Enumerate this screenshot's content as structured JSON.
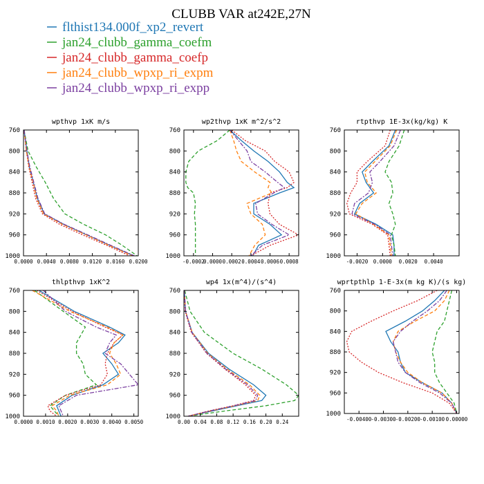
{
  "title": "CLUBB VAR at242E,27N",
  "legend": [
    {
      "label": "flthist134.000f_xp2_revert",
      "color": "#1f77b4",
      "dash": "solid"
    },
    {
      "label": "jan24_clubb_gamma_coefm",
      "color": "#2ca02c",
      "dash": "dash"
    },
    {
      "label": "jan24_clubb_gamma_coefp",
      "color": "#d62728",
      "dash": "dot"
    },
    {
      "label": "jan24_clubb_wpxp_ri_expm",
      "color": "#ff7f0e",
      "dash": "dash"
    },
    {
      "label": "jan24_clubb_wpxp_ri_expp",
      "color": "#7b3fa0",
      "dash": "dashdot"
    }
  ],
  "chart_data": [
    {
      "type": "line",
      "title": "wpthvp  1xK m/s",
      "xlim": [
        0,
        0.02
      ],
      "ylim": [
        760,
        1000
      ],
      "xticks": [
        "0.0000",
        "0.0040",
        "0.0080",
        "0.0120",
        "0.0160",
        "0.0200"
      ],
      "xtick_values": [
        0,
        0.004,
        0.008,
        0.012,
        0.016,
        0.02
      ],
      "yticks": [
        "760",
        "800",
        "840",
        "880",
        "920",
        "960",
        "1000"
      ],
      "ytick_values": [
        760,
        800,
        840,
        880,
        920,
        960,
        1000
      ],
      "y": [
        760,
        800,
        830,
        860,
        890,
        920,
        940,
        960,
        980,
        1000
      ],
      "series": [
        {
          "x": [
            0.0001,
            0.0006,
            0.001,
            0.0017,
            0.0024,
            0.0036,
            0.007,
            0.011,
            0.015,
            0.0192
          ]
        },
        {
          "x": [
            0.0001,
            0.0008,
            0.0022,
            0.0038,
            0.0052,
            0.0072,
            0.0105,
            0.0143,
            0.0172,
            0.0198
          ]
        },
        {
          "x": [
            0.0001,
            0.0005,
            0.0009,
            0.0015,
            0.0021,
            0.0033,
            0.0063,
            0.0103,
            0.0145,
            0.0185
          ]
        },
        {
          "x": [
            0.0001,
            0.0005,
            0.001,
            0.0017,
            0.0023,
            0.0035,
            0.0068,
            0.0109,
            0.0149,
            0.019
          ]
        },
        {
          "x": [
            0.0001,
            0.0006,
            0.0011,
            0.0018,
            0.0025,
            0.0037,
            0.0071,
            0.0112,
            0.0152,
            0.0193
          ]
        }
      ]
    },
    {
      "type": "line",
      "title": "wp2thvp  1xK m^2/s^2",
      "xlim": [
        -0.0003,
        0.0009
      ],
      "ylim": [
        760,
        1000
      ],
      "xticks": [
        "-0.0002",
        "0.0000",
        "0.0002",
        "0.0004",
        "0.0006",
        "0.0008"
      ],
      "xtick_values": [
        -0.0002,
        0,
        0.0002,
        0.0004,
        0.0006,
        0.0008
      ],
      "yticks": [
        "760",
        "800",
        "840",
        "880",
        "920",
        "960",
        "1000"
      ],
      "ytick_values": [
        760,
        800,
        840,
        880,
        920,
        960,
        1000
      ],
      "y": [
        760,
        780,
        800,
        820,
        840,
        860,
        870,
        880,
        900,
        920,
        940,
        960,
        980,
        1000
      ],
      "series": [
        {
          "x": [
            0.00018,
            0.0003,
            0.00043,
            0.00058,
            0.0007,
            0.00078,
            0.00085,
            0.0007,
            0.00043,
            0.00043,
            0.0006,
            0.00072,
            0.00048,
            0.00042
          ]
        },
        {
          "x": [
            0.00018,
            5e-05,
            -0.00015,
            -0.00025,
            -0.00028,
            -0.00028,
            -0.00026,
            -0.0002,
            -0.00018,
            -0.00019,
            -0.00018,
            -0.00018,
            -0.00018,
            -0.00018
          ]
        },
        {
          "x": [
            0.0002,
            0.00034,
            0.00055,
            0.00065,
            0.0008,
            0.00085,
            0.00078,
            0.0006,
            0.00058,
            0.0006,
            0.0007,
            0.0009,
            0.0006,
            0.0004
          ]
        },
        {
          "x": [
            0.00018,
            0.00022,
            0.00025,
            0.0003,
            0.00044,
            0.0006,
            0.00058,
            0.00062,
            0.00036,
            0.0004,
            0.00052,
            0.00055,
            0.00044,
            0.00038
          ]
        },
        {
          "x": [
            0.00018,
            0.00027,
            0.00036,
            0.0004,
            0.00055,
            0.00068,
            0.00075,
            0.00064,
            0.00045,
            0.00047,
            0.00062,
            0.0008,
            0.00052,
            0.0004
          ]
        }
      ]
    },
    {
      "type": "line",
      "title": "rtpthvp  1E-3x(kg/kg) K",
      "xlim": [
        -0.003,
        0.006
      ],
      "ylim": [
        760,
        1000
      ],
      "xticks": [
        "-0.0020",
        "0.0000",
        "0.0020",
        "0.0040"
      ],
      "xtick_values": [
        -0.002,
        0,
        0.002,
        0.004
      ],
      "yticks": [
        "760",
        "800",
        "840",
        "880",
        "920",
        "960",
        "1000"
      ],
      "ytick_values": [
        760,
        800,
        840,
        880,
        920,
        960,
        1000
      ],
      "y": [
        760,
        790,
        820,
        840,
        860,
        880,
        900,
        920,
        940,
        960,
        980,
        1000
      ],
      "series": [
        {
          "x": [
            0.001,
            0.0005,
            -0.0008,
            -0.0016,
            -0.0013,
            -0.0007,
            -0.0018,
            -0.0022,
            -0.0005,
            0.0008,
            0.0009,
            0.0009
          ]
        },
        {
          "x": [
            0.0017,
            0.0013,
            0.0005,
            0.0002,
            0.0007,
            0.0008,
            0.0005,
            0.0008,
            0.001,
            0.0007,
            0.0009,
            0.001
          ]
        },
        {
          "x": [
            0.0006,
            0.0002,
            -0.0012,
            -0.002,
            -0.002,
            -0.0025,
            -0.0028,
            -0.0026,
            -0.0008,
            0.0004,
            0.0005,
            0.0006
          ]
        },
        {
          "x": [
            0.0011,
            0.0006,
            -0.0006,
            -0.0014,
            -0.0012,
            -0.0005,
            -0.0016,
            -0.0021,
            -0.0007,
            0.0005,
            0.0006,
            0.0007
          ]
        },
        {
          "x": [
            0.0014,
            0.0009,
            -0.0002,
            -0.001,
            -0.0008,
            -0.0011,
            -0.0022,
            -0.0024,
            -0.0006,
            0.0006,
            0.0007,
            0.0008
          ]
        }
      ]
    },
    {
      "type": "line",
      "title": "thlpthvp  1xK^2",
      "xlim": [
        0,
        0.0052
      ],
      "ylim": [
        760,
        1000
      ],
      "xticks": [
        "0.0000",
        "0.0010",
        "0.0020",
        "0.0030",
        "0.0040",
        "0.0050"
      ],
      "xtick_values": [
        0,
        0.001,
        0.002,
        0.003,
        0.004,
        0.005
      ],
      "yticks": [
        "760",
        "800",
        "840",
        "880",
        "920",
        "960",
        "1000"
      ],
      "ytick_values": [
        760,
        800,
        840,
        880,
        920,
        960,
        1000
      ],
      "y": [
        760,
        800,
        830,
        845,
        860,
        880,
        900,
        920,
        940,
        960,
        980,
        990,
        1000
      ],
      "series": [
        {
          "x": [
            0.0007,
            0.0023,
            0.0039,
            0.0046,
            0.0043,
            0.0036,
            0.004,
            0.0043,
            0.0036,
            0.0022,
            0.0015,
            0.0016,
            0.0017
          ]
        },
        {
          "x": [
            0.0005,
            0.0018,
            0.0028,
            0.0026,
            0.0024,
            0.0024,
            0.0027,
            0.0028,
            0.0033,
            0.0019,
            0.0012,
            0.0014,
            0.0016
          ]
        },
        {
          "x": [
            0.0006,
            0.0022,
            0.0037,
            0.0045,
            0.0041,
            0.0038,
            0.0037,
            0.0038,
            0.0035,
            0.0019,
            0.0011,
            0.0012,
            0.0015
          ]
        },
        {
          "x": [
            0.0004,
            0.0021,
            0.0038,
            0.0045,
            0.0041,
            0.0039,
            0.0042,
            0.0044,
            0.0038,
            0.0021,
            0.0013,
            0.0015,
            0.0016
          ]
        },
        {
          "x": [
            0.0009,
            0.0019,
            0.0033,
            0.0042,
            0.0039,
            0.0037,
            0.0044,
            0.0048,
            0.0052,
            0.0024,
            0.0016,
            0.0017,
            0.0018
          ]
        }
      ]
    },
    {
      "type": "line",
      "title": "wp4  1x(m^4)/(s^4)",
      "xlim": [
        0,
        0.28
      ],
      "ylim": [
        760,
        1000
      ],
      "xticks": [
        "0.00",
        "0.04",
        "0.08",
        "0.12",
        "0.16",
        "0.20",
        "0.24"
      ],
      "xtick_values": [
        0,
        0.04,
        0.08,
        0.12,
        0.16,
        0.2,
        0.24
      ],
      "yticks": [
        "760",
        "800",
        "840",
        "880",
        "920",
        "960",
        "1000"
      ],
      "ytick_values": [
        760,
        800,
        840,
        880,
        920,
        960,
        1000
      ],
      "y": [
        760,
        800,
        840,
        880,
        910,
        940,
        960,
        970,
        980,
        990,
        1000
      ],
      "series": [
        {
          "x": [
            0.001,
            0.004,
            0.02,
            0.06,
            0.11,
            0.17,
            0.2,
            0.19,
            0.13,
            0.07,
            0.01
          ]
        },
        {
          "x": [
            0.002,
            0.015,
            0.05,
            0.12,
            0.19,
            0.25,
            0.28,
            0.27,
            0.2,
            0.1,
            0.01
          ]
        },
        {
          "x": [
            0.001,
            0.003,
            0.018,
            0.055,
            0.1,
            0.15,
            0.175,
            0.17,
            0.12,
            0.06,
            0.01
          ]
        },
        {
          "x": [
            0.001,
            0.004,
            0.02,
            0.058,
            0.105,
            0.16,
            0.185,
            0.18,
            0.125,
            0.065,
            0.01
          ]
        },
        {
          "x": [
            0.001,
            0.004,
            0.019,
            0.056,
            0.102,
            0.155,
            0.18,
            0.175,
            0.122,
            0.062,
            0.01
          ]
        }
      ]
    },
    {
      "type": "line",
      "title": "wprtpthlp  1-E-3x(m kg K)/(s kg)",
      "xlim": [
        -0.0046,
        0.0001
      ],
      "ylim": [
        760,
        1000
      ],
      "xticks": [
        "-0.00400",
        "-0.00300",
        "-0.00200",
        "-0.00100",
        "0.00000"
      ],
      "xtick_values": [
        -0.004,
        -0.003,
        -0.002,
        -0.001,
        0
      ],
      "yticks": [
        "760",
        "800",
        "840",
        "880",
        "920",
        "960",
        "1000"
      ],
      "ytick_values": [
        760,
        800,
        840,
        880,
        920,
        960,
        1000
      ],
      "y": [
        760,
        780,
        800,
        820,
        840,
        860,
        880,
        900,
        920,
        940,
        960,
        980,
        1000
      ],
      "series": [
        {
          "x": [
            -0.0005,
            -0.0009,
            -0.0014,
            -0.0021,
            -0.0029,
            -0.0027,
            -0.0024,
            -0.0023,
            -0.0021,
            -0.0014,
            -0.0006,
            -0.0002,
            0
          ]
        },
        {
          "x": [
            -0.0002,
            -0.0003,
            -0.0004,
            -0.0005,
            -0.0008,
            -0.0009,
            -0.001,
            -0.0009,
            -0.0009,
            -0.0007,
            -0.0004,
            -0.0001,
            0
          ]
        },
        {
          "x": [
            -0.0008,
            -0.0016,
            -0.0026,
            -0.0035,
            -0.0043,
            -0.0045,
            -0.0044,
            -0.0039,
            -0.0032,
            -0.0022,
            -0.001,
            -0.0003,
            0
          ]
        },
        {
          "x": [
            -0.0003,
            -0.0005,
            -0.0009,
            -0.0017,
            -0.0024,
            -0.0026,
            -0.0025,
            -0.0023,
            -0.002,
            -0.0014,
            -0.0006,
            -0.0002,
            0
          ]
        },
        {
          "x": [
            -0.0004,
            -0.0007,
            -0.0012,
            -0.0018,
            -0.0023,
            -0.0026,
            -0.0025,
            -0.0024,
            -0.0021,
            -0.0015,
            -0.0007,
            -0.0002,
            0
          ]
        }
      ]
    }
  ]
}
